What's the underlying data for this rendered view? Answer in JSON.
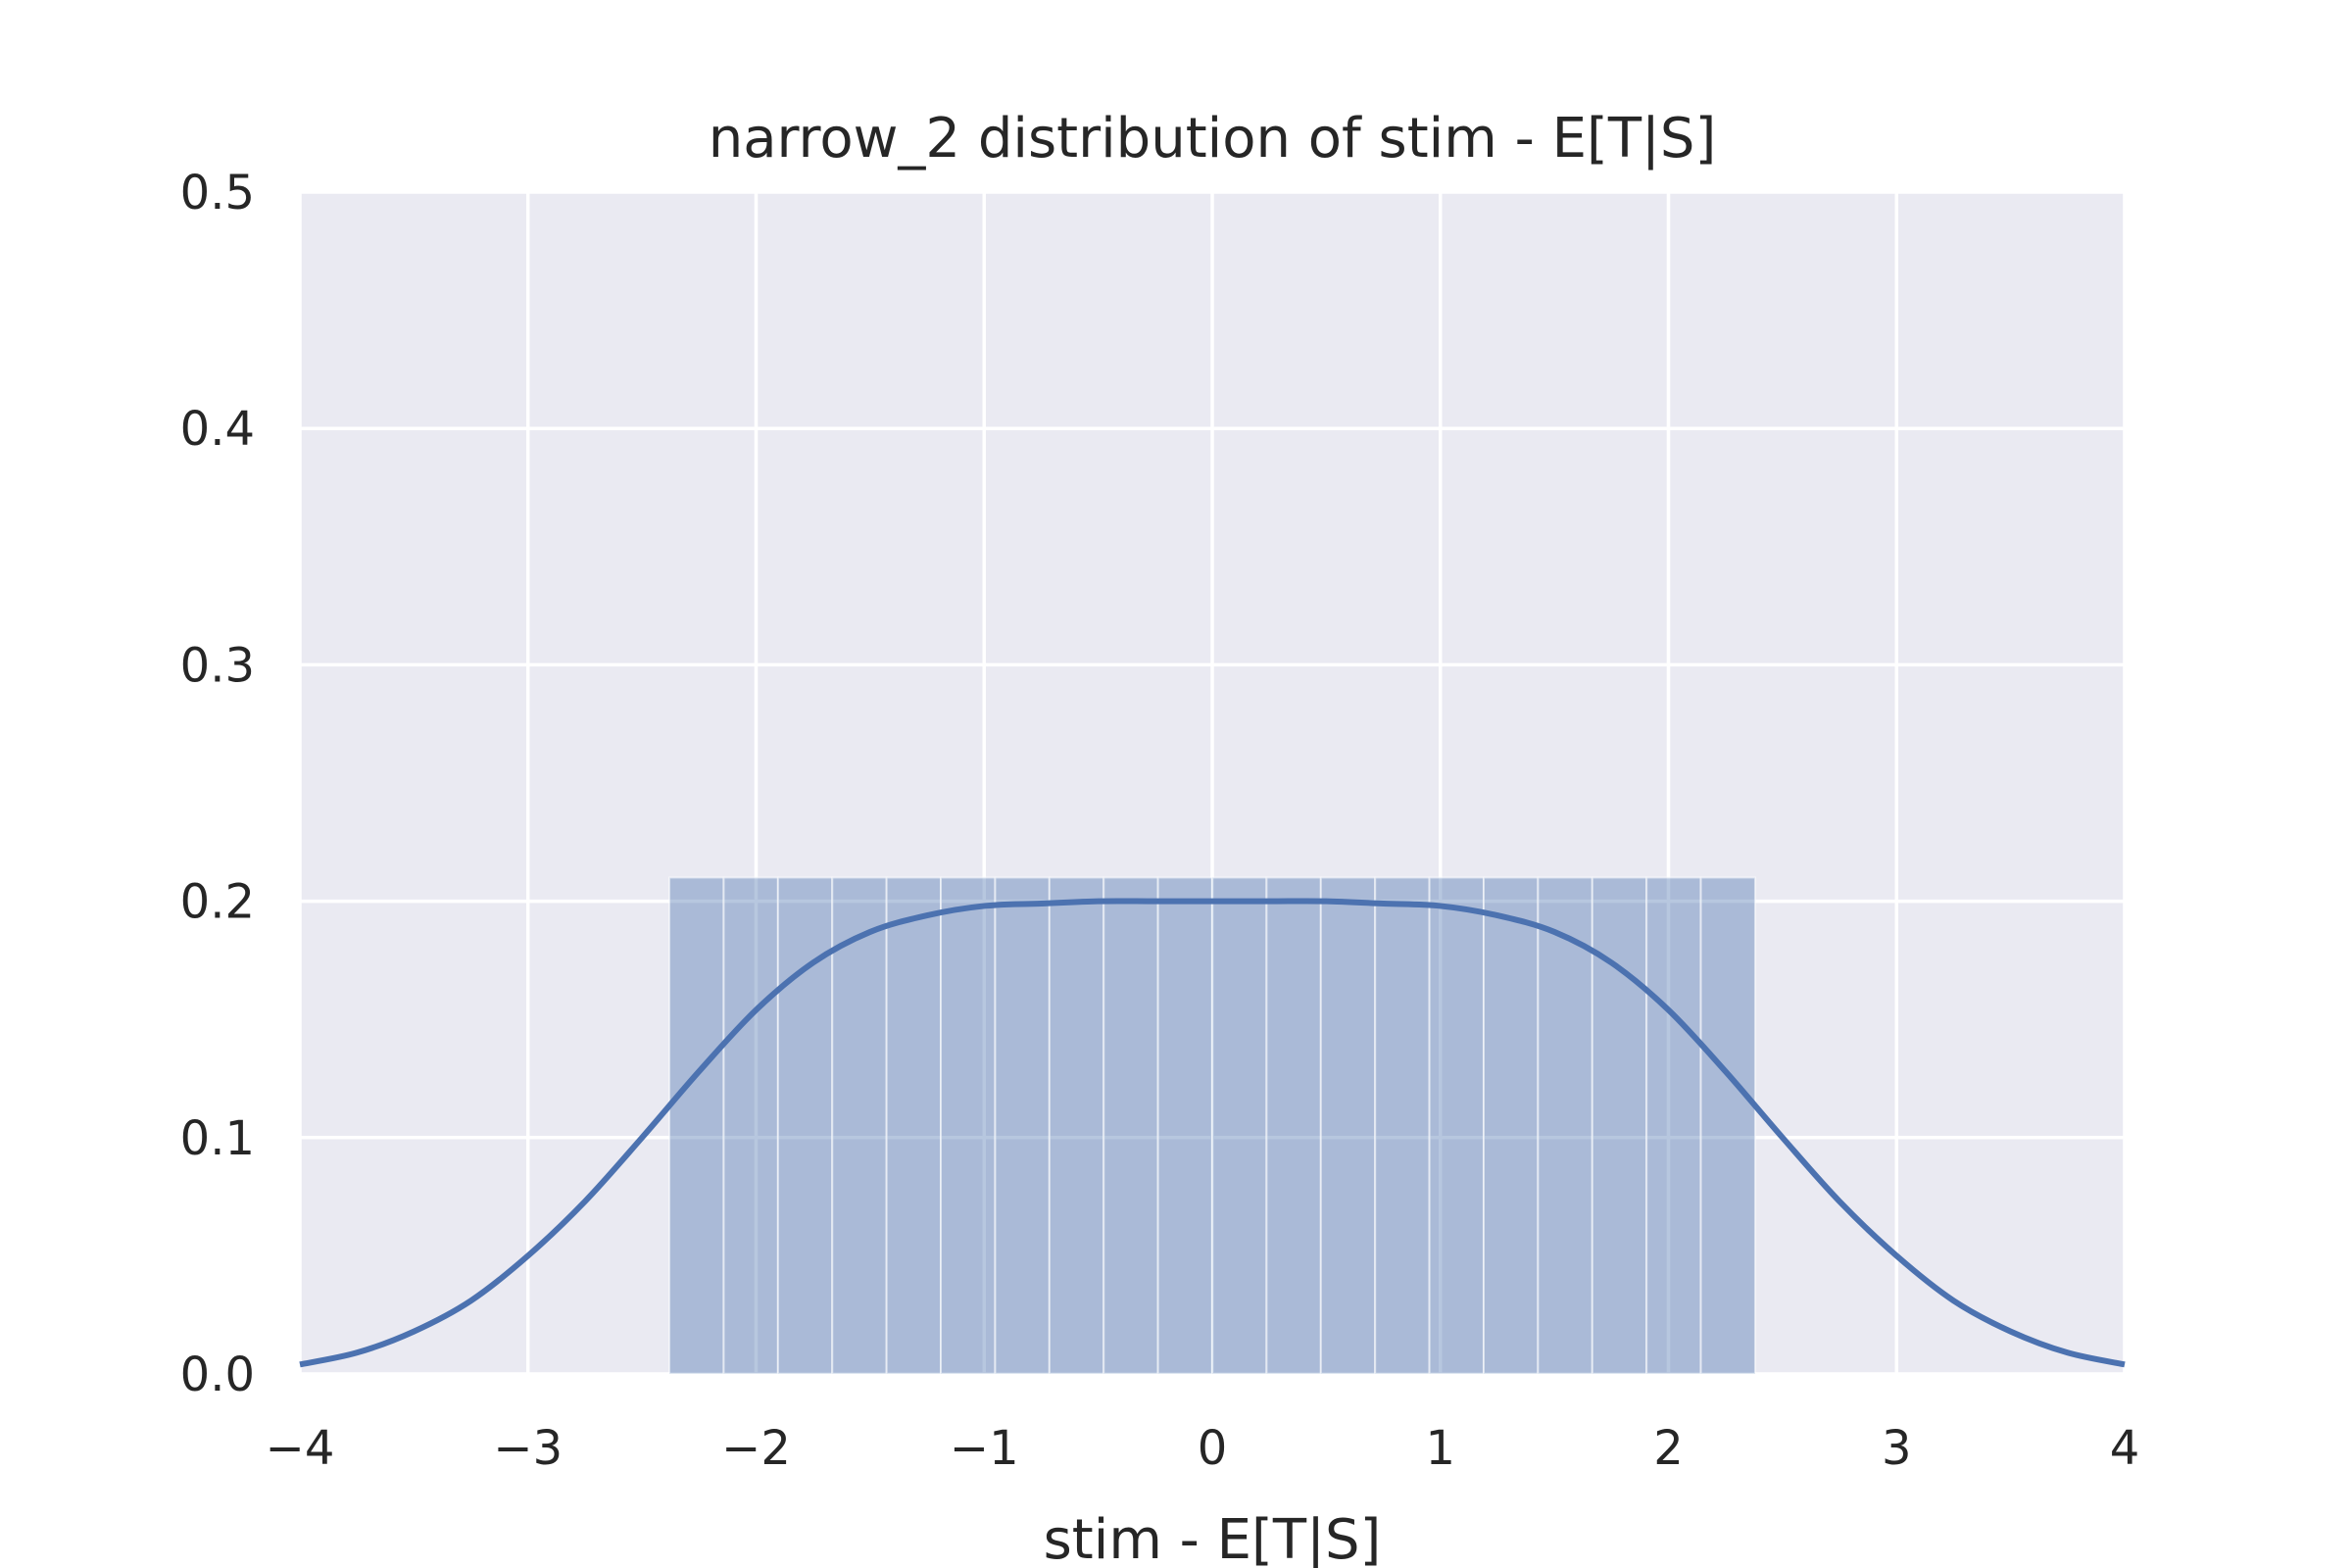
{
  "chart_data": {
    "type": "bar",
    "title": "narrow_2 distribution of stim - E[T|S]",
    "xlabel": "stim - E[T|S]",
    "ylabel": "",
    "xlim": [
      -4,
      4
    ],
    "ylim": [
      0,
      0.5
    ],
    "x_ticks": [
      -4,
      -3,
      -2,
      -1,
      0,
      1,
      2,
      3,
      4
    ],
    "x_tick_labels": [
      "−4",
      "−3",
      "−2",
      "−1",
      "0",
      "1",
      "2",
      "3",
      "4"
    ],
    "y_ticks": [
      0,
      0.1,
      0.2,
      0.3,
      0.4,
      0.5
    ],
    "y_tick_labels": [
      "0.0",
      "0.1",
      "0.2",
      "0.3",
      "0.4",
      "0.5"
    ],
    "grid": true,
    "histogram": {
      "bin_start": -2.38,
      "bin_end": 2.38,
      "bin_count": 20,
      "values": [
        0.21,
        0.21,
        0.21,
        0.21,
        0.21,
        0.21,
        0.21,
        0.21,
        0.21,
        0.21,
        0.21,
        0.21,
        0.21,
        0.21,
        0.21,
        0.21,
        0.21,
        0.21,
        0.21,
        0.21
      ]
    },
    "kde": {
      "x": [
        -4.0,
        -3.75,
        -3.5,
        -3.25,
        -3.0,
        -2.75,
        -2.5,
        -2.25,
        -2.0,
        -1.75,
        -1.5,
        -1.25,
        -1.0,
        -0.75,
        -0.5,
        -0.25,
        0.0,
        0.25,
        0.5,
        0.75,
        1.0,
        1.25,
        1.5,
        1.75,
        2.0,
        2.25,
        2.5,
        2.75,
        3.0,
        3.25,
        3.5,
        3.75,
        4.0
      ],
      "y": [
        0.004,
        0.009,
        0.018,
        0.031,
        0.05,
        0.073,
        0.1,
        0.128,
        0.154,
        0.174,
        0.187,
        0.194,
        0.198,
        0.199,
        0.2,
        0.2,
        0.2,
        0.2,
        0.2,
        0.199,
        0.198,
        0.194,
        0.187,
        0.174,
        0.154,
        0.128,
        0.1,
        0.073,
        0.05,
        0.031,
        0.018,
        0.009,
        0.004
      ]
    },
    "colors": {
      "background": "#EAEAF2",
      "grid": "#FFFFFF",
      "bar_fill": "#4C72B0",
      "line": "#4C72B0"
    }
  }
}
